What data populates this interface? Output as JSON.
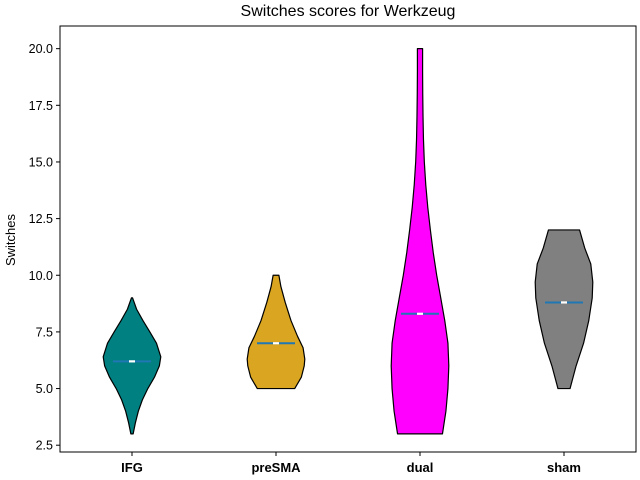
{
  "chart_data": {
    "type": "violin",
    "title": "Switches scores for Werkzeug",
    "xlabel": "",
    "ylabel": "Switches",
    "ylim": [
      2.2,
      21.0
    ],
    "yticks": [
      "2.5",
      "5.0",
      "7.5",
      "10.0",
      "12.5",
      "15.0",
      "17.5",
      "20.0"
    ],
    "grid": false,
    "categories": [
      "IFG",
      "preSMA",
      "dual",
      "sham"
    ],
    "series": [
      {
        "category": "IFG",
        "color": "#008080",
        "min": 3,
        "max": 9,
        "mean": 6.2,
        "median": 6.2,
        "density": [
          [
            3.0,
            0.04
          ],
          [
            3.5,
            0.12
          ],
          [
            4.0,
            0.22
          ],
          [
            4.5,
            0.36
          ],
          [
            5.0,
            0.55
          ],
          [
            5.5,
            0.78
          ],
          [
            6.0,
            0.95
          ],
          [
            6.4,
            1.0
          ],
          [
            7.0,
            0.85
          ],
          [
            7.5,
            0.62
          ],
          [
            8.0,
            0.38
          ],
          [
            8.5,
            0.16
          ],
          [
            9.0,
            0.02
          ]
        ]
      },
      {
        "category": "preSMA",
        "color": "#DAA520",
        "min": 5,
        "max": 10,
        "mean": 7.0,
        "median": 7.0,
        "density": [
          [
            5.0,
            0.65
          ],
          [
            5.5,
            0.88
          ],
          [
            6.0,
            0.98
          ],
          [
            6.3,
            1.0
          ],
          [
            6.8,
            0.94
          ],
          [
            7.3,
            0.75
          ],
          [
            8.0,
            0.52
          ],
          [
            8.8,
            0.32
          ],
          [
            9.5,
            0.17
          ],
          [
            10.0,
            0.1
          ]
        ]
      },
      {
        "category": "dual",
        "color": "#FF00FF",
        "min": 3,
        "max": 20,
        "mean": 8.3,
        "median": 8.3,
        "density": [
          [
            3.0,
            0.78
          ],
          [
            4.0,
            0.9
          ],
          [
            5.0,
            0.97
          ],
          [
            6.0,
            1.0
          ],
          [
            7.0,
            0.97
          ],
          [
            8.0,
            0.86
          ],
          [
            9.0,
            0.72
          ],
          [
            10.0,
            0.58
          ],
          [
            11.0,
            0.46
          ],
          [
            12.0,
            0.36
          ],
          [
            13.0,
            0.27
          ],
          [
            14.0,
            0.2
          ],
          [
            15.0,
            0.15
          ],
          [
            16.0,
            0.12
          ],
          [
            17.0,
            0.105
          ],
          [
            18.0,
            0.095
          ],
          [
            19.0,
            0.09
          ],
          [
            20.0,
            0.09
          ]
        ]
      },
      {
        "category": "sham",
        "color": "#808080",
        "min": 5,
        "max": 12,
        "mean": 8.8,
        "median": 8.8,
        "density": [
          [
            5.0,
            0.21
          ],
          [
            6.0,
            0.42
          ],
          [
            7.0,
            0.68
          ],
          [
            8.0,
            0.86
          ],
          [
            9.0,
            0.98
          ],
          [
            9.7,
            1.0
          ],
          [
            10.5,
            0.93
          ],
          [
            11.2,
            0.72
          ],
          [
            12.0,
            0.54
          ]
        ]
      }
    ]
  }
}
